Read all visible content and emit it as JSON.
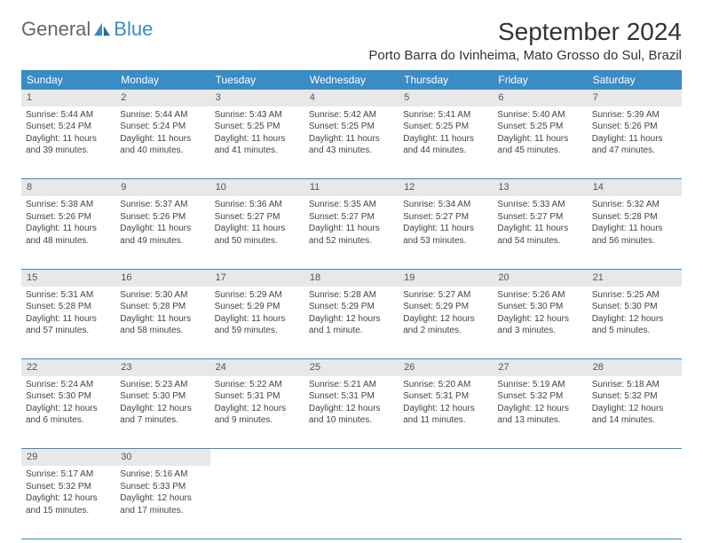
{
  "logo": {
    "text1": "General",
    "text2": "Blue"
  },
  "title": "September 2024",
  "location": "Porto Barra do Ivinheima, Mato Grosso do Sul, Brazil",
  "colors": {
    "header_bg": "#3b8bc4",
    "header_text": "#ffffff",
    "daynum_bg": "#e8e8e8",
    "border": "#3b8bc4",
    "text": "#444444",
    "background": "#ffffff"
  },
  "typography": {
    "title_fontsize": 28,
    "location_fontsize": 15,
    "dayheader_fontsize": 12,
    "cell_fontsize": 10
  },
  "layout": {
    "columns": 7,
    "rows": 5
  },
  "day_headers": [
    "Sunday",
    "Monday",
    "Tuesday",
    "Wednesday",
    "Thursday",
    "Friday",
    "Saturday"
  ],
  "days": [
    {
      "n": "1",
      "sunrise": "5:44 AM",
      "sunset": "5:24 PM",
      "daylight": "11 hours and 39 minutes."
    },
    {
      "n": "2",
      "sunrise": "5:44 AM",
      "sunset": "5:24 PM",
      "daylight": "11 hours and 40 minutes."
    },
    {
      "n": "3",
      "sunrise": "5:43 AM",
      "sunset": "5:25 PM",
      "daylight": "11 hours and 41 minutes."
    },
    {
      "n": "4",
      "sunrise": "5:42 AM",
      "sunset": "5:25 PM",
      "daylight": "11 hours and 43 minutes."
    },
    {
      "n": "5",
      "sunrise": "5:41 AM",
      "sunset": "5:25 PM",
      "daylight": "11 hours and 44 minutes."
    },
    {
      "n": "6",
      "sunrise": "5:40 AM",
      "sunset": "5:25 PM",
      "daylight": "11 hours and 45 minutes."
    },
    {
      "n": "7",
      "sunrise": "5:39 AM",
      "sunset": "5:26 PM",
      "daylight": "11 hours and 47 minutes."
    },
    {
      "n": "8",
      "sunrise": "5:38 AM",
      "sunset": "5:26 PM",
      "daylight": "11 hours and 48 minutes."
    },
    {
      "n": "9",
      "sunrise": "5:37 AM",
      "sunset": "5:26 PM",
      "daylight": "11 hours and 49 minutes."
    },
    {
      "n": "10",
      "sunrise": "5:36 AM",
      "sunset": "5:27 PM",
      "daylight": "11 hours and 50 minutes."
    },
    {
      "n": "11",
      "sunrise": "5:35 AM",
      "sunset": "5:27 PM",
      "daylight": "11 hours and 52 minutes."
    },
    {
      "n": "12",
      "sunrise": "5:34 AM",
      "sunset": "5:27 PM",
      "daylight": "11 hours and 53 minutes."
    },
    {
      "n": "13",
      "sunrise": "5:33 AM",
      "sunset": "5:27 PM",
      "daylight": "11 hours and 54 minutes."
    },
    {
      "n": "14",
      "sunrise": "5:32 AM",
      "sunset": "5:28 PM",
      "daylight": "11 hours and 56 minutes."
    },
    {
      "n": "15",
      "sunrise": "5:31 AM",
      "sunset": "5:28 PM",
      "daylight": "11 hours and 57 minutes."
    },
    {
      "n": "16",
      "sunrise": "5:30 AM",
      "sunset": "5:28 PM",
      "daylight": "11 hours and 58 minutes."
    },
    {
      "n": "17",
      "sunrise": "5:29 AM",
      "sunset": "5:29 PM",
      "daylight": "11 hours and 59 minutes."
    },
    {
      "n": "18",
      "sunrise": "5:28 AM",
      "sunset": "5:29 PM",
      "daylight": "12 hours and 1 minute."
    },
    {
      "n": "19",
      "sunrise": "5:27 AM",
      "sunset": "5:29 PM",
      "daylight": "12 hours and 2 minutes."
    },
    {
      "n": "20",
      "sunrise": "5:26 AM",
      "sunset": "5:30 PM",
      "daylight": "12 hours and 3 minutes."
    },
    {
      "n": "21",
      "sunrise": "5:25 AM",
      "sunset": "5:30 PM",
      "daylight": "12 hours and 5 minutes."
    },
    {
      "n": "22",
      "sunrise": "5:24 AM",
      "sunset": "5:30 PM",
      "daylight": "12 hours and 6 minutes."
    },
    {
      "n": "23",
      "sunrise": "5:23 AM",
      "sunset": "5:30 PM",
      "daylight": "12 hours and 7 minutes."
    },
    {
      "n": "24",
      "sunrise": "5:22 AM",
      "sunset": "5:31 PM",
      "daylight": "12 hours and 9 minutes."
    },
    {
      "n": "25",
      "sunrise": "5:21 AM",
      "sunset": "5:31 PM",
      "daylight": "12 hours and 10 minutes."
    },
    {
      "n": "26",
      "sunrise": "5:20 AM",
      "sunset": "5:31 PM",
      "daylight": "12 hours and 11 minutes."
    },
    {
      "n": "27",
      "sunrise": "5:19 AM",
      "sunset": "5:32 PM",
      "daylight": "12 hours and 13 minutes."
    },
    {
      "n": "28",
      "sunrise": "5:18 AM",
      "sunset": "5:32 PM",
      "daylight": "12 hours and 14 minutes."
    },
    {
      "n": "29",
      "sunrise": "5:17 AM",
      "sunset": "5:32 PM",
      "daylight": "12 hours and 15 minutes."
    },
    {
      "n": "30",
      "sunrise": "5:16 AM",
      "sunset": "5:33 PM",
      "daylight": "12 hours and 17 minutes."
    }
  ],
  "labels": {
    "sunrise": "Sunrise:",
    "sunset": "Sunset:",
    "daylight": "Daylight:"
  }
}
